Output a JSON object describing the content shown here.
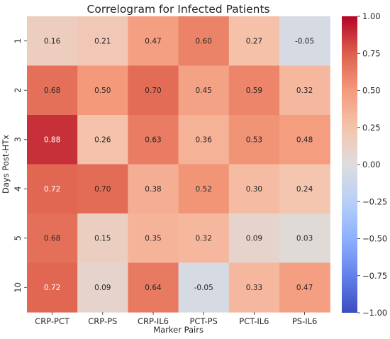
{
  "chart_data": {
    "type": "heatmap",
    "title": "Correlogram for Infected Patients",
    "xlabel": "Marker Pairs",
    "ylabel": "Days Post-HTx",
    "x_categories": [
      "CRP-PCT",
      "CRP-PS",
      "CRP-IL6",
      "PCT-PS",
      "PCT-IL6",
      "PS-IL6"
    ],
    "y_categories": [
      "1",
      "2",
      "3",
      "4",
      "5",
      "10"
    ],
    "values": [
      [
        0.16,
        0.21,
        0.47,
        0.6,
        0.27,
        -0.05
      ],
      [
        0.68,
        0.5,
        0.7,
        0.45,
        0.59,
        0.32
      ],
      [
        0.88,
        0.26,
        0.63,
        0.36,
        0.53,
        0.48
      ],
      [
        0.72,
        0.7,
        0.38,
        0.52,
        0.3,
        0.24
      ],
      [
        0.68,
        0.15,
        0.35,
        0.32,
        0.09,
        0.03
      ],
      [
        0.72,
        0.09,
        0.64,
        -0.05,
        0.33,
        0.47
      ]
    ],
    "value_labels": [
      [
        "0.16",
        "0.21",
        "0.47",
        "0.60",
        "0.27",
        "-0.05"
      ],
      [
        "0.68",
        "0.50",
        "0.70",
        "0.45",
        "0.59",
        "0.32"
      ],
      [
        "0.88",
        "0.26",
        "0.63",
        "0.36",
        "0.53",
        "0.48"
      ],
      [
        "0.72",
        "0.70",
        "0.38",
        "0.52",
        "0.30",
        "0.24"
      ],
      [
        "0.68",
        "0.15",
        "0.35",
        "0.32",
        "0.09",
        "0.03"
      ],
      [
        "0.72",
        "0.09",
        "0.64",
        "-0.05",
        "0.33",
        "0.47"
      ]
    ],
    "colorbar": {
      "range": [
        -1.0,
        1.0
      ],
      "colormap": "coolwarm",
      "ticks": [
        1.0,
        0.75,
        0.5,
        0.25,
        0.0,
        -0.25,
        -0.5,
        -0.75,
        -1.0
      ],
      "tick_labels": [
        "1.00",
        "0.75",
        "0.50",
        "0.25",
        "0.00",
        "−0.25",
        "−0.50",
        "−0.75",
        "−1.00"
      ]
    },
    "annotations": true,
    "grid": false
  }
}
